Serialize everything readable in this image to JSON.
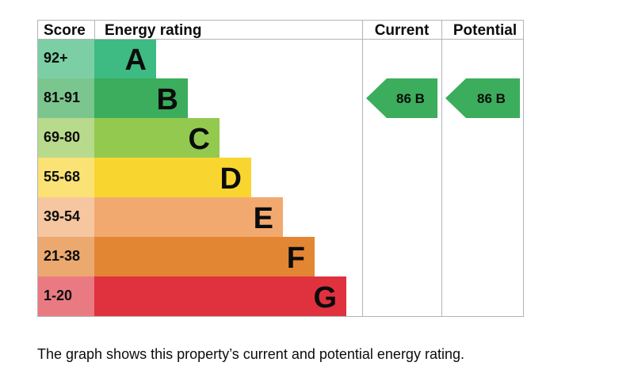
{
  "chart_data": {
    "type": "bar",
    "headers": {
      "score": "Score",
      "energy_rating": "Energy rating",
      "current": "Current",
      "potential": "Potential"
    },
    "bands": [
      {
        "letter": "A",
        "range": "92+",
        "color": "#3dbb82",
        "score_bg": "#7ccfa5"
      },
      {
        "letter": "B",
        "range": "81-91",
        "color": "#3bad5c",
        "score_bg": "#7bc68f"
      },
      {
        "letter": "C",
        "range": "69-80",
        "color": "#93c94f",
        "score_bg": "#b8da8c"
      },
      {
        "letter": "D",
        "range": "55-68",
        "color": "#f9d530",
        "score_bg": "#fbe274"
      },
      {
        "letter": "E",
        "range": "39-54",
        "color": "#f2a96f",
        "score_bg": "#f6c6a0"
      },
      {
        "letter": "F",
        "range": "21-38",
        "color": "#e38634",
        "score_bg": "#eba96f"
      },
      {
        "letter": "G",
        "range": "1-20",
        "color": "#e0313f",
        "score_bg": "#ea7a82"
      }
    ],
    "current": {
      "score": 86,
      "band": "B",
      "label": "86  B"
    },
    "potential": {
      "score": 86,
      "band": "B",
      "label": "86  B"
    },
    "grid_color": "#b1b4b6"
  },
  "caption": "The graph shows this property’s current and potential energy rating."
}
